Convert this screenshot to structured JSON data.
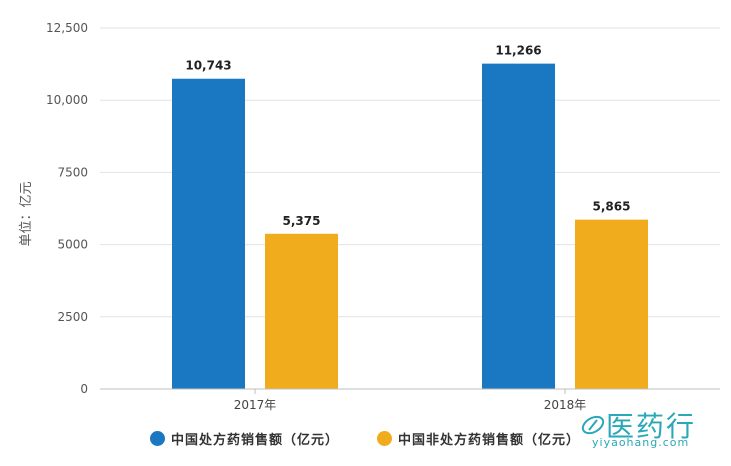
{
  "chart_data": {
    "type": "bar",
    "categories": [
      "2017年",
      "2018年"
    ],
    "series": [
      {
        "name": "中国处方药销售额（亿元）",
        "values": [
          10743,
          11266
        ],
        "labels": [
          "10,743",
          "11,266"
        ],
        "color": "#1a78c2"
      },
      {
        "name": "中国非处方药销售额（亿元）",
        "values": [
          5375,
          5865
        ],
        "labels": [
          "5,375",
          "5,865"
        ],
        "color": "#f0ac1c"
      }
    ],
    "ylabel": "单位：亿元",
    "ylim": [
      0,
      12500
    ],
    "yticks": [
      0,
      2500,
      5000,
      7500,
      10000,
      12500
    ],
    "yticklabels": [
      "0",
      "2500",
      "5000",
      "7500",
      "10,000",
      "12,500"
    ],
    "grid": true,
    "legend": "bottom"
  },
  "watermark": {
    "logo_text": "医药行",
    "site": "yiyaohang.com",
    "color": "#2aa7b8"
  }
}
